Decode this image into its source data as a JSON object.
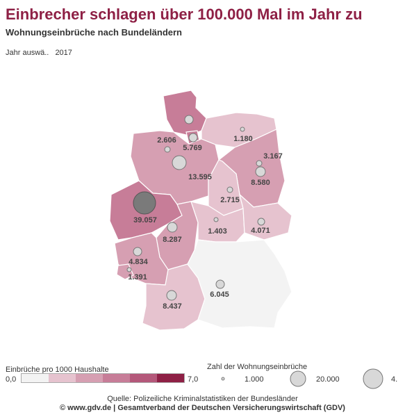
{
  "header": {
    "title": "Einbrecher schlagen über 100.000 Mal im Jahr zu",
    "subtitle": "Wohnungseinbrüche nach Bundeländern"
  },
  "filter": {
    "label": "Jahr auswä..",
    "value": "2017"
  },
  "colors": {
    "scale": [
      "#f3f3f3",
      "#e6c3cf",
      "#d69fb2",
      "#c77d98",
      "#b4587a",
      "#8e2045"
    ],
    "bubble": "#d8d8d8",
    "bubble_large": "#7a7a7a",
    "title": "#8e2045"
  },
  "map": {
    "states": [
      {
        "id": "sh",
        "label": "5.769",
        "class_index": 3
      },
      {
        "id": "hh",
        "label": "",
        "class_index": 3
      },
      {
        "id": "mv",
        "label": "1.180",
        "class_index": 1
      },
      {
        "id": "hb",
        "label": "2.606",
        "class_index": 3
      },
      {
        "id": "ni",
        "label": "13.595",
        "class_index": 2
      },
      {
        "id": "be",
        "label": "3.167",
        "class_index": 5
      },
      {
        "id": "bb",
        "label": "8.580",
        "class_index": 2
      },
      {
        "id": "st",
        "label": "2.715",
        "class_index": 1
      },
      {
        "id": "nw",
        "label": "39.057",
        "class_index": 3
      },
      {
        "id": "he",
        "label": "8.287",
        "class_index": 2
      },
      {
        "id": "th",
        "label": "1.403",
        "class_index": 1
      },
      {
        "id": "sn",
        "label": "4.071",
        "class_index": 1
      },
      {
        "id": "rp",
        "label": "4.834",
        "class_index": 2
      },
      {
        "id": "sl",
        "label": "1.391",
        "class_index": 2
      },
      {
        "id": "bw",
        "label": "8.437",
        "class_index": 1
      },
      {
        "id": "by",
        "label": "6.045",
        "class_index": 0
      }
    ]
  },
  "legend": {
    "color_title": "Einbrüche pro 1000 Haushalte",
    "min": "0,0",
    "max": "7,0",
    "size_title": "Zahl der Wohnungseinbrüche",
    "size_labels": [
      "1.000",
      "20.000",
      "4."
    ]
  },
  "source": {
    "line1": "Quelle: Polizeiliche Kriminalstatistiken der Bundesländer",
    "line2": "© www.gdv.de | Gesamtverband der Deutschen Versicherungswirtschaft (GDV)"
  }
}
